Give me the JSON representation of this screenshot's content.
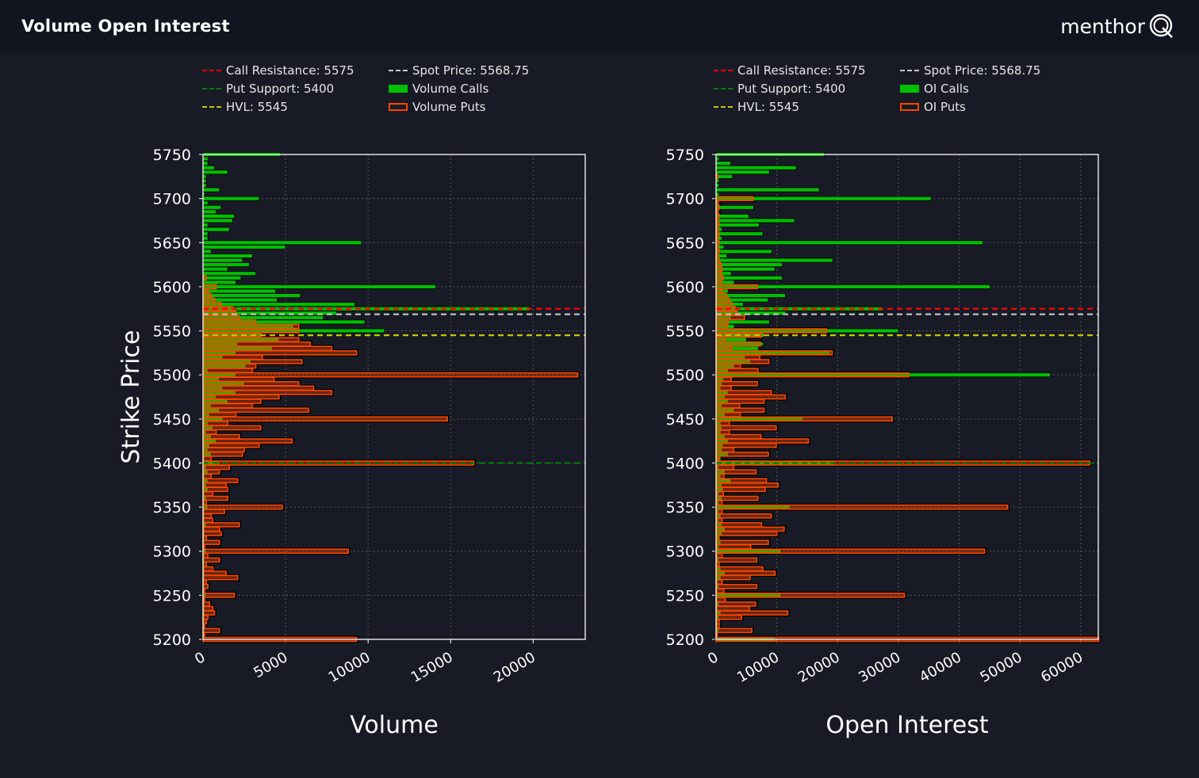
{
  "header": {
    "title": "Volume Open Interest",
    "logo_text": "menthor",
    "logo_mark": "Q"
  },
  "colors": {
    "background": "#181b26",
    "header": "#111520",
    "calls": "#00c000",
    "puts": "#ff4500",
    "call_resistance": "#ff0000",
    "put_support": "#008000",
    "hvl": "#c8c800",
    "spot": "#c8c8c8",
    "grid": "#555555"
  },
  "chart_data": [
    {
      "type": "bar",
      "orientation": "horizontal",
      "xlabel": "Volume",
      "ylabel": "Strike Price",
      "xlim": [
        0,
        23150
      ],
      "ylim": [
        5200,
        5750
      ],
      "x_ticks": [
        "0",
        "5000",
        "10000",
        "15000",
        "20000"
      ],
      "y_ticks": [
        "5200",
        "5250",
        "5300",
        "5350",
        "5400",
        "5450",
        "5500",
        "5550",
        "5600",
        "5650",
        "5700",
        "5750"
      ],
      "grid": true,
      "legend_position": "top",
      "legend": {
        "call_resistance": "Call Resistance: 5575",
        "put_support": "Put Support: 5400",
        "hvl": "HVL: 5545",
        "spot": "Spot Price: 5568.75",
        "calls": "Volume Calls",
        "puts": "Volume Puts"
      },
      "levels": {
        "call_resistance": 5575,
        "put_support": 5400,
        "hvl": 5545,
        "spot": 5568.75
      },
      "strike_range": [
        5750,
        5200
      ],
      "strike_step": 5,
      "series": [
        {
          "name": "Volume Calls",
          "values": [
            4700,
            300,
            300,
            700,
            1500,
            200,
            200,
            200,
            1000,
            100,
            3400,
            300,
            1100,
            800,
            1900,
            1800,
            300,
            1600,
            300,
            300,
            9600,
            5000,
            500,
            3000,
            2400,
            2800,
            1500,
            3200,
            2300,
            2000,
            14100,
            4400,
            5900,
            4500,
            9200,
            19800,
            8100,
            7300,
            9800,
            5500,
            11000,
            3500,
            4600,
            2100,
            4200,
            2000,
            1200,
            2900,
            2600,
            300,
            2000,
            1000,
            2500,
            1200,
            2000,
            800,
            1500,
            500,
            1000,
            400,
            1200,
            300,
            600,
            200,
            500,
            800,
            400,
            300,
            500,
            100,
            1000,
            200,
            300,
            100,
            300,
            200,
            300,
            100,
            200,
            100,
            300,
            100,
            100,
            100,
            200,
            100,
            100,
            100,
            100,
            100,
            200,
            100,
            100,
            100,
            100,
            100,
            100,
            100,
            100,
            100,
            200,
            100,
            100,
            100,
            100,
            100,
            100,
            100,
            100,
            100,
            100
          ]
        },
        {
          "name": "Volume Puts",
          "values": [
            0,
            0,
            0,
            0,
            0,
            0,
            0,
            0,
            0,
            0,
            0,
            0,
            0,
            0,
            0,
            0,
            0,
            0,
            0,
            0,
            0,
            0,
            0,
            0,
            0,
            0,
            0,
            0,
            200,
            0,
            800,
            300,
            500,
            700,
            1100,
            1800,
            2000,
            2200,
            3200,
            5800,
            5800,
            3500,
            5800,
            6500,
            7800,
            9300,
            3600,
            6000,
            3200,
            3000,
            22700,
            4300,
            5800,
            6700,
            7800,
            4600,
            3500,
            3000,
            6400,
            2000,
            14800,
            1500,
            3500,
            800,
            2200,
            5400,
            3400,
            2500,
            2400,
            500,
            16400,
            1600,
            1000,
            500,
            2100,
            1400,
            1500,
            600,
            1500,
            200,
            4800,
            1300,
            500,
            600,
            2200,
            1000,
            1100,
            200,
            1000,
            100,
            8800,
            300,
            1000,
            200,
            600,
            1400,
            2100,
            200,
            300,
            100,
            1900,
            100,
            400,
            600,
            700,
            300,
            200,
            100,
            1000,
            100,
            9300
          ]
        }
      ]
    },
    {
      "type": "bar",
      "orientation": "horizontal",
      "xlabel": "Open Interest",
      "ylabel": "",
      "xlim": [
        0,
        62900
      ],
      "ylim": [
        5200,
        5750
      ],
      "x_ticks": [
        "0",
        "10000",
        "20000",
        "30000",
        "40000",
        "50000",
        "60000"
      ],
      "y_ticks": [
        "5200",
        "5250",
        "5300",
        "5350",
        "5400",
        "5450",
        "5500",
        "5550",
        "5600",
        "5650",
        "5700",
        "5750"
      ],
      "grid": true,
      "legend_position": "top",
      "legend": {
        "call_resistance": "Call Resistance: 5575",
        "put_support": "Put Support: 5400",
        "hvl": "HVL: 5545",
        "spot": "Spot Price: 5568.75",
        "calls": "OI Calls",
        "puts": "OI Puts"
      },
      "levels": {
        "call_resistance": 5575,
        "put_support": 5400,
        "hvl": 5545,
        "spot": 5568.75
      },
      "strike_range": [
        5750,
        5200
      ],
      "strike_step": 5,
      "series": [
        {
          "name": "OI Calls",
          "values": [
            17800,
            500,
            2400,
            13200,
            8800,
            2700,
            500,
            500,
            17000,
            500,
            35400,
            500,
            6200,
            500,
            5400,
            12900,
            7100,
            1000,
            7700,
            1000,
            43900,
            1300,
            9200,
            1800,
            19200,
            10900,
            9700,
            2500,
            10900,
            3000,
            45100,
            2000,
            11400,
            8600,
            4500,
            27400,
            11500,
            2500,
            8800,
            3000,
            30000,
            7900,
            5000,
            7800,
            7000,
            18800,
            4800,
            5700,
            3000,
            2000,
            55000,
            1300,
            1000,
            800,
            2000,
            1500,
            2000,
            1000,
            3000,
            1500,
            14300,
            800,
            1000,
            800,
            1500,
            2000,
            1200,
            1000,
            2000,
            800,
            19500,
            500,
            1500,
            800,
            2500,
            1000,
            1200,
            500,
            1000,
            500,
            12200,
            500,
            800,
            500,
            1000,
            1500,
            1000,
            500,
            800,
            500,
            10700,
            300,
            500,
            300,
            800,
            1500,
            800,
            300,
            500,
            300,
            10700,
            300,
            500,
            300,
            800,
            500,
            300,
            300,
            500,
            200,
            9800
          ]
        },
        {
          "name": "OI Puts",
          "values": [
            0,
            0,
            0,
            0,
            0,
            300,
            0,
            0,
            0,
            0,
            6100,
            300,
            500,
            300,
            500,
            300,
            500,
            300,
            500,
            300,
            500,
            300,
            500,
            300,
            500,
            800,
            1000,
            800,
            1200,
            800,
            6800,
            1000,
            1700,
            2200,
            2700,
            3200,
            3500,
            4700,
            2000,
            1800,
            18200,
            7500,
            1500,
            7300,
            2500,
            19100,
            7200,
            8700,
            4000,
            6900,
            31700,
            2500,
            6800,
            2500,
            9100,
            11400,
            7900,
            3900,
            7900,
            4000,
            29000,
            2200,
            9900,
            2200,
            7400,
            15200,
            9900,
            2900,
            8600,
            500,
            61500,
            2900,
            6600,
            1300,
            8300,
            10200,
            8100,
            1200,
            6900,
            1000,
            48000,
            1000,
            9100,
            1000,
            7500,
            11200,
            10000,
            500,
            8600,
            5700,
            44200,
            1000,
            6700,
            500,
            7700,
            9700,
            5600,
            1000,
            6700,
            1300,
            31000,
            1500,
            6500,
            5500,
            11800,
            4200,
            500,
            500,
            5900,
            200,
            63000
          ]
        }
      ]
    }
  ]
}
